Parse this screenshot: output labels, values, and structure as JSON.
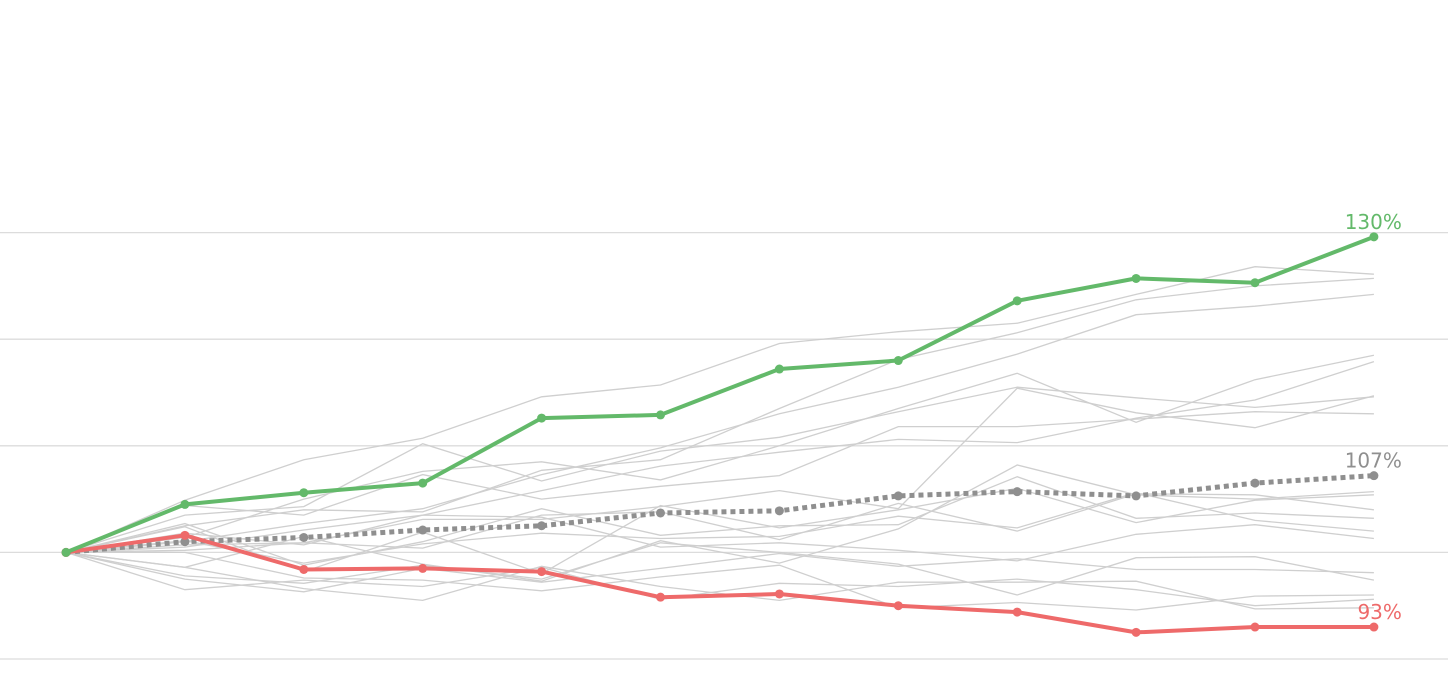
{
  "chart_data": {
    "type": "line",
    "title": "",
    "xlabel": "",
    "ylabel": "",
    "x": [
      0,
      1,
      2,
      3,
      4,
      5,
      6,
      7,
      8,
      9,
      10,
      11
    ],
    "ylim": [
      0.9,
      1.4
    ],
    "y_gridlines": [
      0.9,
      1.0,
      1.1,
      1.2,
      1.3
    ],
    "grid": true,
    "legend": "none",
    "series": [
      {
        "role": "best",
        "color": "#63b96a",
        "dashed": false,
        "markers": true,
        "values": [
          1.0,
          1.045,
          1.056,
          1.065,
          1.126,
          1.129,
          1.172,
          1.18,
          1.236,
          1.257,
          1.253,
          1.296
        ],
        "end_label": "130%"
      },
      {
        "role": "worst",
        "color": "#ee6a6a",
        "dashed": false,
        "markers": true,
        "values": [
          1.0,
          1.016,
          0.984,
          0.985,
          0.982,
          0.958,
          0.961,
          0.95,
          0.944,
          0.925,
          0.93,
          0.93
        ],
        "end_label": "93%"
      },
      {
        "role": "median",
        "color": "#8f8f8f",
        "dashed": true,
        "markers": true,
        "values": [
          1.0,
          1.01,
          1.014,
          1.021,
          1.025,
          1.037,
          1.039,
          1.053,
          1.057,
          1.053,
          1.065,
          1.072
        ],
        "end_label": "107%"
      }
    ],
    "background_series_color": "#cfcfcf",
    "background_series": [
      [
        1.0,
        1.049,
        1.087,
        1.107,
        1.146,
        1.157,
        1.196,
        1.207,
        1.215,
        1.242,
        1.268,
        1.261
      ],
      [
        1.0,
        1.01,
        1.027,
        1.041,
        1.073,
        1.098,
        1.13,
        1.155,
        1.186,
        1.223,
        1.231,
        1.242
      ],
      [
        1.0,
        1.025,
        1.04,
        1.038,
        1.077,
        1.087,
        1.135,
        1.181,
        1.206,
        1.237,
        1.25,
        1.257
      ],
      [
        1.0,
        1.014,
        1.05,
        1.076,
        1.085,
        1.068,
        1.1,
        1.135,
        1.168,
        1.122,
        1.162,
        1.185
      ],
      [
        1.0,
        1.035,
        1.043,
        1.102,
        1.067,
        1.095,
        1.108,
        1.132,
        1.155,
        1.145,
        1.136,
        1.146
      ],
      [
        1.0,
        1.005,
        1.021,
        1.035,
        1.058,
        1.081,
        1.094,
        1.106,
        1.103,
        1.126,
        1.143,
        1.179
      ],
      [
        1.0,
        1.044,
        1.035,
        1.073,
        1.05,
        1.062,
        1.072,
        1.118,
        1.118,
        1.125,
        1.132,
        1.13
      ],
      [
        1.0,
        1.007,
        1.009,
        1.031,
        1.031,
        1.043,
        1.058,
        1.041,
        1.154,
        1.131,
        1.117,
        1.147
      ],
      [
        1.0,
        0.986,
        1.015,
        0.989,
        0.973,
        1.011,
        0.99,
        1.022,
        1.082,
        1.054,
        1.05,
        1.057
      ],
      [
        1.0,
        1.024,
        0.982,
        1.019,
        0.98,
        1.044,
        1.023,
        1.04,
        1.06,
        1.028,
        1.049,
        1.054
      ],
      [
        1.0,
        1.002,
        1.009,
        1.004,
        1.035,
        1.038,
        1.012,
        1.046,
        1.02,
        1.055,
        1.054,
        1.04
      ],
      [
        1.0,
        1.027,
        0.988,
        1.01,
        1.041,
        1.016,
        1.025,
        1.026,
        1.071,
        1.032,
        1.037,
        1.032
      ],
      [
        1.0,
        1.011,
        0.99,
        1.008,
        1.018,
        1.013,
        1.015,
        1.034,
        1.023,
        1.056,
        1.03,
        1.02
      ],
      [
        1.0,
        1.018,
        1.007,
        1.035,
        1.033,
        1.005,
        1.009,
        1.002,
        0.992,
        1.017,
        1.026,
        1.013
      ],
      [
        1.0,
        0.978,
        0.971,
        0.988,
        0.975,
        1.009,
        1.0,
        0.989,
        0.96,
        0.995,
        0.996,
        0.974
      ],
      [
        1.0,
        0.965,
        0.974,
        0.968,
        0.986,
        0.956,
        0.971,
        0.968,
        0.975,
        0.965,
        0.95,
        0.956
      ],
      [
        1.0,
        1.0,
        0.976,
        0.974,
        0.964,
        0.977,
        0.988,
        0.948,
        0.953,
        0.946,
        0.959,
        0.96
      ],
      [
        1.0,
        0.986,
        0.966,
        0.955,
        0.987,
        0.968,
        0.955,
        0.972,
        0.972,
        0.973,
        0.947,
        0.948
      ],
      [
        1.0,
        0.975,
        0.963,
        0.985,
        0.972,
        0.985,
        0.999,
        0.987,
        0.994,
        0.984,
        0.984,
        0.981
      ]
    ]
  }
}
